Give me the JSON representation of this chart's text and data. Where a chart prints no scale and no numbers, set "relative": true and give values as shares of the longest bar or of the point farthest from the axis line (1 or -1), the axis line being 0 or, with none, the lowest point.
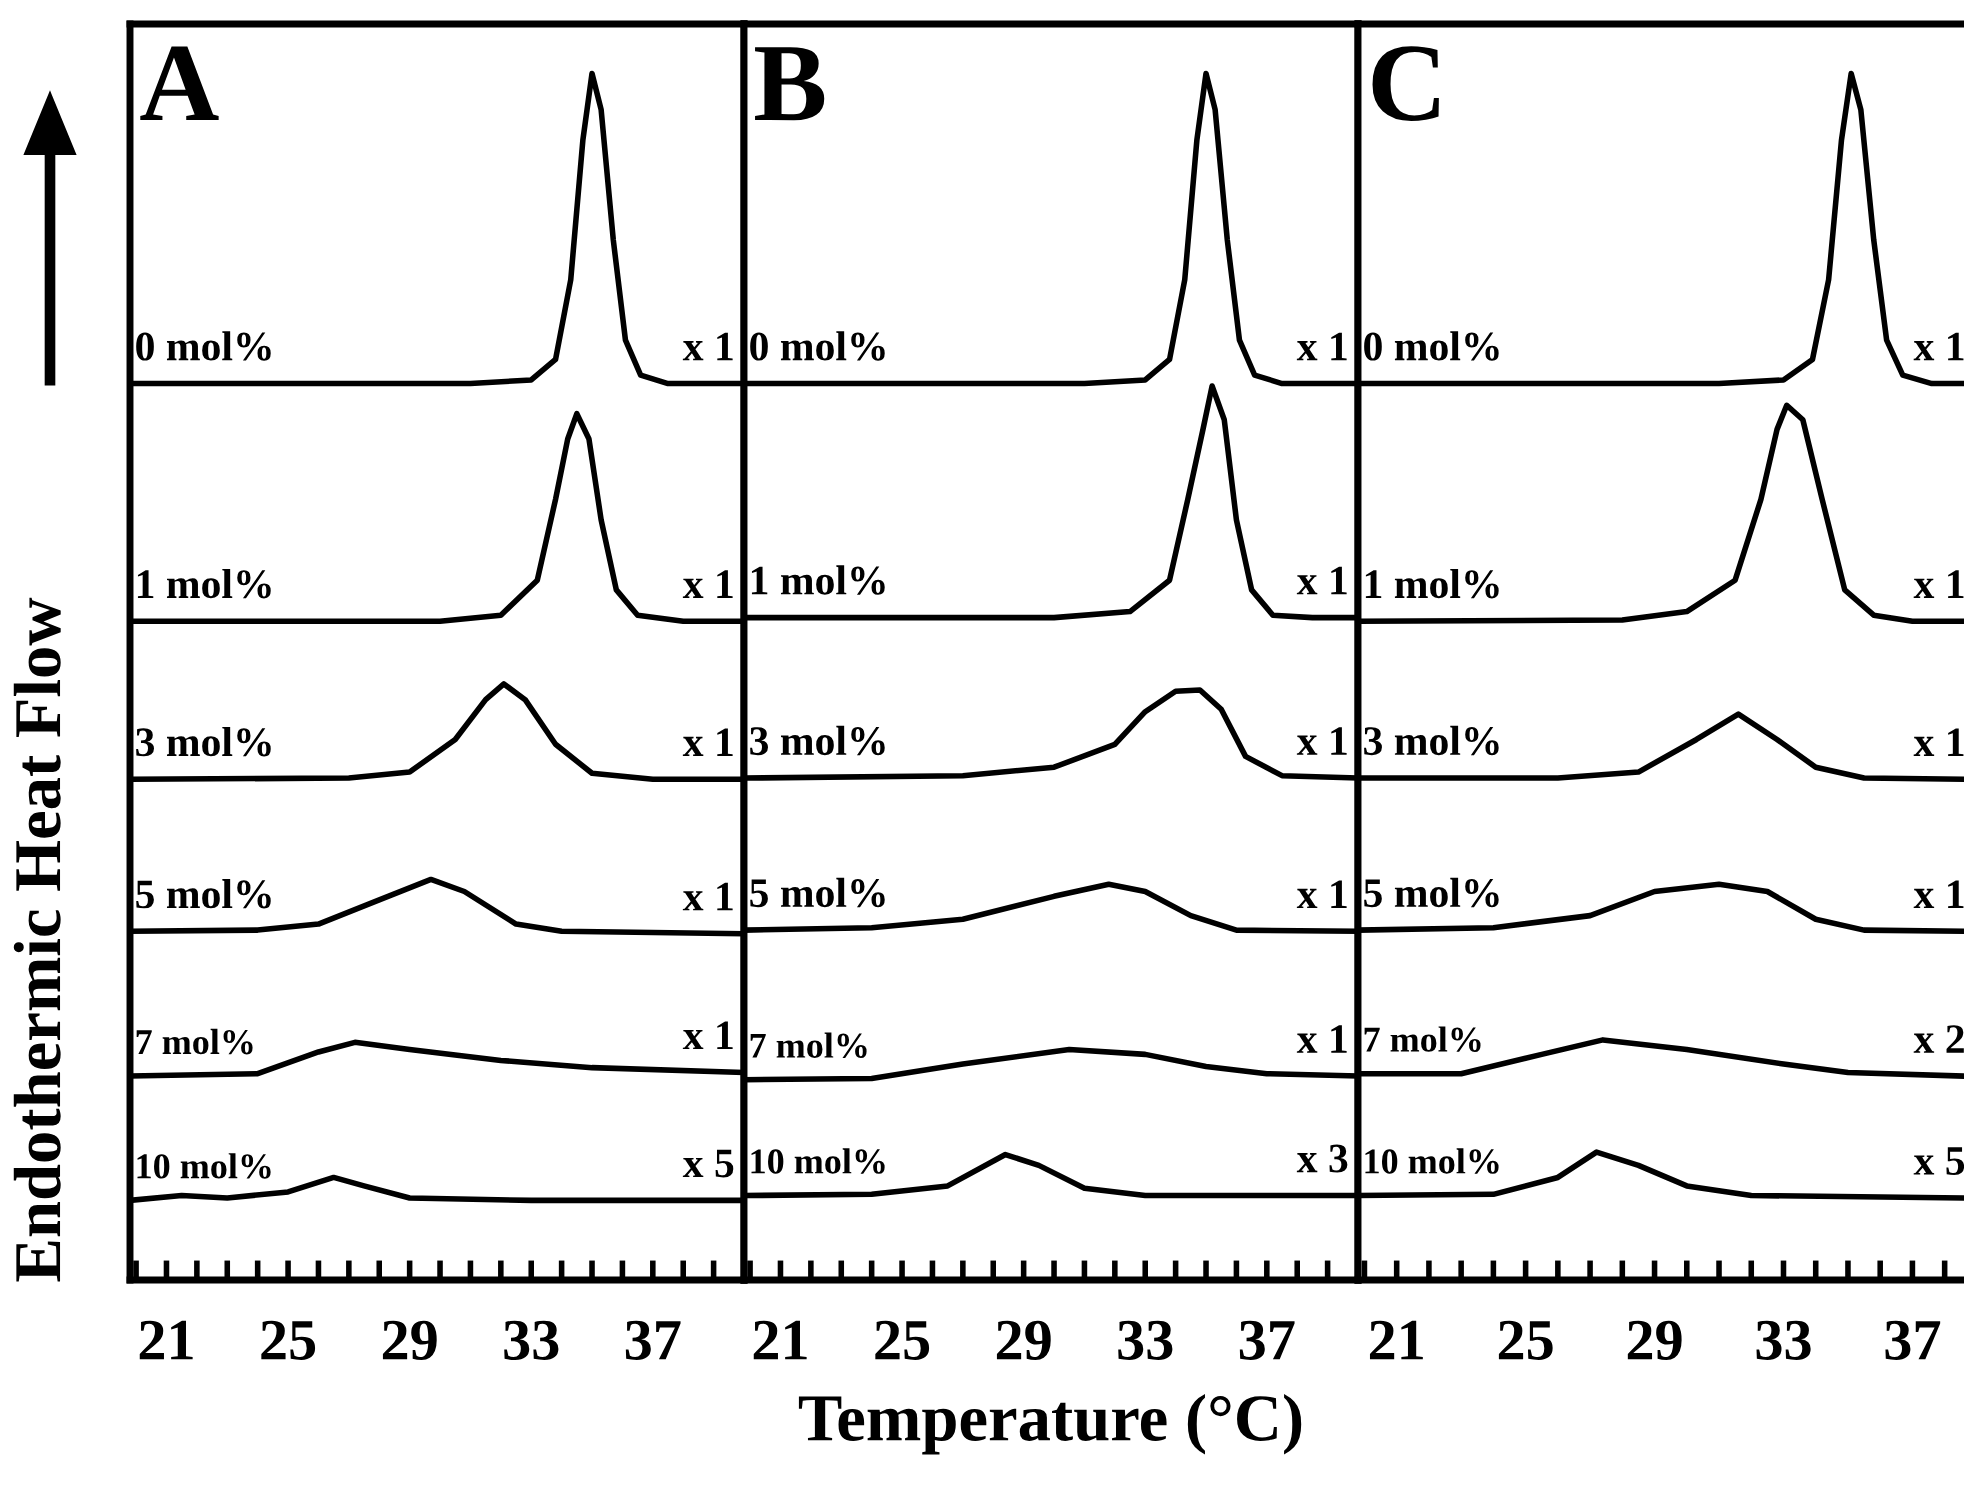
{
  "chart_data": [
    {
      "type": "line",
      "relative": true,
      "title": "A",
      "ylabel": "Endothermic Heat Flow",
      "xlim": [
        19.8,
        40
      ],
      "xticks": [
        {
          "value": 20,
          "label": null
        },
        21,
        {
          "value": 22,
          "label": null
        },
        {
          "value": 23,
          "label": null
        },
        {
          "value": 24,
          "label": null
        },
        25,
        {
          "value": 26,
          "label": null
        },
        {
          "value": 27,
          "label": null
        },
        {
          "value": 28,
          "label": null
        },
        29,
        {
          "value": 30,
          "label": null
        },
        {
          "value": 31,
          "label": null
        },
        {
          "value": 32,
          "label": null
        },
        33,
        {
          "value": 34,
          "label": null
        },
        {
          "value": 35,
          "label": null
        },
        {
          "value": 36,
          "label": null
        },
        37,
        {
          "value": 38,
          "label": null
        },
        {
          "value": 39,
          "label": null
        }
      ],
      "line_style": "solid",
      "annotations": [
        "x 1",
        "x 1",
        "x 1",
        "x 1",
        "x 1",
        "x 5"
      ],
      "series": [
        {
          "name": "0 mol%",
          "color": "#000000",
          "x": [
            19.8,
            31,
            33,
            33.8,
            34.3,
            34.7,
            35,
            35.3,
            35.7,
            36.1,
            36.6,
            37.5,
            40
          ],
          "values": [
            0.743,
            0.743,
            0.746,
            0.763,
            0.829,
            0.945,
            1.0,
            0.97,
            0.862,
            0.779,
            0.75,
            0.743,
            0.743
          ]
        },
        {
          "name": "1 mol%",
          "color": "#000000",
          "x": [
            19.8,
            30,
            32,
            33.2,
            33.8,
            34.2,
            34.5,
            34.9,
            35.3,
            35.8,
            36.5,
            38,
            40
          ],
          "values": [
            0.546,
            0.546,
            0.551,
            0.58,
            0.647,
            0.697,
            0.718,
            0.697,
            0.63,
            0.572,
            0.551,
            0.546,
            0.546
          ]
        },
        {
          "name": "3 mol%",
          "color": "#000000",
          "x": [
            19.8,
            27,
            29,
            30.5,
            31.5,
            32.1,
            32.8,
            33.8,
            35,
            37,
            40
          ],
          "values": [
            0.415,
            0.416,
            0.421,
            0.448,
            0.481,
            0.494,
            0.481,
            0.444,
            0.42,
            0.415,
            0.415
          ]
        },
        {
          "name": "5 mol%",
          "color": "#000000",
          "x": [
            19.8,
            24,
            26,
            28,
            29.7,
            30.8,
            32.5,
            34,
            40
          ],
          "values": [
            0.289,
            0.29,
            0.295,
            0.315,
            0.332,
            0.322,
            0.295,
            0.289,
            0.287
          ]
        },
        {
          "name": "7 mol%",
          "color": "#000000",
          "x": [
            19.8,
            24,
            26,
            27.2,
            29,
            32,
            35,
            40
          ],
          "values": [
            0.169,
            0.171,
            0.189,
            0.197,
            0.191,
            0.182,
            0.176,
            0.172
          ]
        },
        {
          "name": "10 mol%",
          "color": "#000000",
          "x": [
            19.8,
            21.5,
            23,
            25,
            26.5,
            27.5,
            29,
            33,
            40
          ],
          "values": [
            0.066,
            0.07,
            0.068,
            0.073,
            0.085,
            0.078,
            0.068,
            0.066,
            0.066
          ]
        }
      ]
    },
    {
      "type": "line",
      "relative": true,
      "title": "B",
      "xlabel": "Temperature (°C)",
      "xlim": [
        19.8,
        40
      ],
      "xticks": [
        {
          "value": 20,
          "label": null
        },
        21,
        {
          "value": 22,
          "label": null
        },
        {
          "value": 23,
          "label": null
        },
        {
          "value": 24,
          "label": null
        },
        25,
        {
          "value": 26,
          "label": null
        },
        {
          "value": 27,
          "label": null
        },
        {
          "value": 28,
          "label": null
        },
        29,
        {
          "value": 30,
          "label": null
        },
        {
          "value": 31,
          "label": null
        },
        {
          "value": 32,
          "label": null
        },
        33,
        {
          "value": 34,
          "label": null
        },
        {
          "value": 35,
          "label": null
        },
        {
          "value": 36,
          "label": null
        },
        37,
        {
          "value": 38,
          "label": null
        },
        {
          "value": 39,
          "label": null
        }
      ],
      "line_style": "solid",
      "annotations": [
        "x 1",
        "x 1",
        "x 1",
        "x 1",
        "x 1",
        "x 3"
      ],
      "series": [
        {
          "name": "0 mol%",
          "color": "#000000",
          "x": [
            19.8,
            31,
            33,
            33.8,
            34.3,
            34.7,
            35,
            35.3,
            35.7,
            36.1,
            36.6,
            37.5,
            40
          ],
          "values": [
            0.743,
            0.743,
            0.746,
            0.763,
            0.829,
            0.945,
            1.0,
            0.97,
            0.862,
            0.779,
            0.75,
            0.743,
            0.743
          ]
        },
        {
          "name": "1 mol%",
          "color": "#000000",
          "x": [
            19.8,
            30,
            32.5,
            33.8,
            34.4,
            34.9,
            35.2,
            35.6,
            36,
            36.5,
            37.2,
            38.5,
            40
          ],
          "values": [
            0.549,
            0.549,
            0.554,
            0.58,
            0.647,
            0.705,
            0.741,
            0.713,
            0.63,
            0.572,
            0.551,
            0.549,
            0.549
          ]
        },
        {
          "name": "3 mol%",
          "color": "#000000",
          "x": [
            19.8,
            27,
            30,
            32,
            33,
            34,
            34.8,
            35.5,
            36.3,
            37.5,
            40
          ],
          "values": [
            0.416,
            0.418,
            0.425,
            0.444,
            0.471,
            0.488,
            0.489,
            0.473,
            0.434,
            0.418,
            0.416
          ]
        },
        {
          "name": "5 mol%",
          "color": "#000000",
          "x": [
            19.8,
            24,
            27,
            30,
            31.8,
            33,
            34.5,
            36,
            40
          ],
          "values": [
            0.29,
            0.292,
            0.299,
            0.318,
            0.328,
            0.322,
            0.302,
            0.29,
            0.289
          ]
        },
        {
          "name": "7 mol%",
          "color": "#000000",
          "x": [
            19.8,
            24,
            27,
            30.5,
            33,
            35,
            37,
            40
          ],
          "values": [
            0.166,
            0.167,
            0.179,
            0.191,
            0.187,
            0.177,
            0.171,
            0.169
          ]
        },
        {
          "name": "10 mol%",
          "color": "#000000",
          "x": [
            19.8,
            24,
            26.5,
            28.4,
            29.5,
            31,
            33,
            40
          ],
          "values": [
            0.07,
            0.071,
            0.078,
            0.104,
            0.095,
            0.076,
            0.07,
            0.07
          ]
        }
      ]
    },
    {
      "type": "line",
      "relative": true,
      "title": "C",
      "xlim": [
        19.8,
        38.6
      ],
      "xticks": [
        {
          "value": 20,
          "label": null
        },
        21,
        {
          "value": 22,
          "label": null
        },
        {
          "value": 23,
          "label": null
        },
        {
          "value": 24,
          "label": null
        },
        25,
        {
          "value": 26,
          "label": null
        },
        {
          "value": 27,
          "label": null
        },
        {
          "value": 28,
          "label": null
        },
        29,
        {
          "value": 30,
          "label": null
        },
        {
          "value": 31,
          "label": null
        },
        {
          "value": 32,
          "label": null
        },
        33,
        {
          "value": 34,
          "label": null
        },
        {
          "value": 35,
          "label": null
        },
        {
          "value": 36,
          "label": null
        },
        37,
        {
          "value": 38,
          "label": null
        }
      ],
      "line_style": "solid",
      "annotations": [
        "x 1",
        "x 1",
        "x 1",
        "x 1",
        "x 2",
        "x 5"
      ],
      "series": [
        {
          "name": "0 mol%",
          "color": "#000000",
          "x": [
            19.8,
            31,
            33,
            33.9,
            34.4,
            34.8,
            35.1,
            35.4,
            35.8,
            36.2,
            36.7,
            37.6,
            38.6
          ],
          "values": [
            0.743,
            0.743,
            0.746,
            0.763,
            0.829,
            0.945,
            1.0,
            0.97,
            0.862,
            0.779,
            0.75,
            0.743,
            0.743
          ]
        },
        {
          "name": "1 mol%",
          "color": "#000000",
          "x": [
            19.8,
            28,
            30,
            31.5,
            32.3,
            32.8,
            33.1,
            33.6,
            34.2,
            34.9,
            35.8,
            37,
            38.6
          ],
          "values": [
            0.546,
            0.547,
            0.554,
            0.58,
            0.647,
            0.705,
            0.725,
            0.713,
            0.647,
            0.572,
            0.551,
            0.546,
            0.546
          ]
        },
        {
          "name": "3 mol%",
          "color": "#000000",
          "x": [
            19.8,
            26,
            28.5,
            30.3,
            31.6,
            32.8,
            34,
            35.5,
            38.6
          ],
          "values": [
            0.416,
            0.416,
            0.421,
            0.448,
            0.469,
            0.448,
            0.425,
            0.416,
            0.415
          ]
        },
        {
          "name": "5 mol%",
          "color": "#000000",
          "x": [
            19.8,
            24,
            27,
            29,
            31,
            32.5,
            34,
            35.5,
            38.6
          ],
          "values": [
            0.29,
            0.292,
            0.302,
            0.322,
            0.328,
            0.322,
            0.299,
            0.29,
            0.289
          ]
        },
        {
          "name": "7 mol%",
          "color": "#000000",
          "x": [
            19.8,
            23,
            25.5,
            27.4,
            30,
            33,
            35,
            38.6
          ],
          "values": [
            0.171,
            0.171,
            0.187,
            0.199,
            0.191,
            0.179,
            0.172,
            0.169
          ]
        },
        {
          "name": "10 mol%",
          "color": "#000000",
          "x": [
            19.8,
            24,
            26,
            27.2,
            28.5,
            30,
            32,
            38.6
          ],
          "values": [
            0.07,
            0.071,
            0.085,
            0.106,
            0.095,
            0.078,
            0.07,
            0.068
          ]
        }
      ]
    }
  ]
}
